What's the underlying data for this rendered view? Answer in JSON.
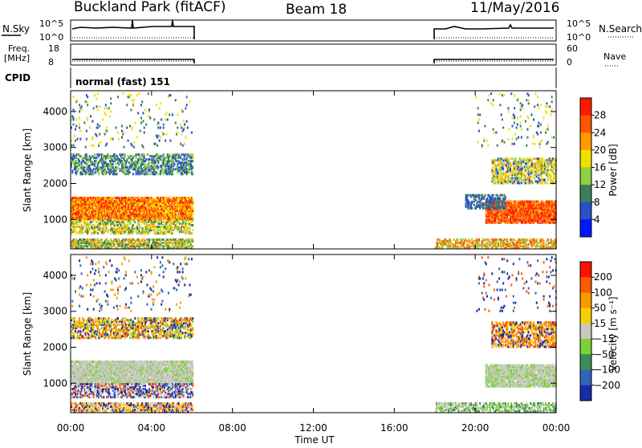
{
  "header": {
    "title": "Buckland Park (fitACF)",
    "beam": "Beam 18",
    "date": "11/May/2016"
  },
  "top_panels": {
    "nsky_label": "N.Sky",
    "nsearch_label": "N.Search",
    "n_left_ticks": [
      "10^5",
      "10^0"
    ],
    "n_right_ticks": [
      "10^5",
      "10^0"
    ],
    "freq_label_1": "Freq.",
    "freq_label_2": "[MHz]",
    "freq_ticks": [
      "18",
      "8"
    ],
    "nave_label": "Nave",
    "nave_ticks": [
      "60",
      "0"
    ],
    "cpid_label": "CPID",
    "cpid_value": "normal (fast) 151"
  },
  "chart_data": [
    {
      "type": "heatmap",
      "name": "power",
      "ylabel": "Slant Range [km]",
      "xlabel": "",
      "x_ticks": [
        "00:00",
        "04:00",
        "08:00",
        "12:00",
        "16:00",
        "20:00",
        "00:00"
      ],
      "xlim_hours": [
        0,
        24
      ],
      "y_ticks": [
        "1000",
        "2000",
        "3000",
        "4000"
      ],
      "ylim": [
        180,
        4580
      ],
      "colorbar_label": "Power [dB]",
      "colorbar_ticks": [
        "4",
        "8",
        "12",
        "16",
        "20",
        "24",
        "28"
      ],
      "colorbar_colors": [
        "#0018ff",
        "#2850c8",
        "#3a7f5a",
        "#8fd040",
        "#f0e000",
        "#ff9a00",
        "#ff5500",
        "#ff1800"
      ],
      "data_gaps_hours": [
        [
          6,
          18
        ]
      ]
    },
    {
      "type": "heatmap",
      "name": "velocity",
      "ylabel": "Slant Range [km]",
      "xlabel": "Time UT",
      "x_ticks": [
        "00:00",
        "04:00",
        "08:00",
        "12:00",
        "16:00",
        "20:00",
        "00:00"
      ],
      "xlim_hours": [
        0,
        24
      ],
      "y_ticks": [
        "1000",
        "2000",
        "3000",
        "4000"
      ],
      "ylim": [
        180,
        4580
      ],
      "colorbar_label": "Velocity [m s⁻¹]",
      "colorbar_ticks": [
        "200",
        "100",
        "50",
        "15",
        "−15",
        "−50",
        "−100",
        "−200"
      ],
      "colorbar_colors": [
        "#1a2aa8",
        "#2f66b8",
        "#3d8a5a",
        "#7cd03a",
        "#c8c8c0",
        "#f8d000",
        "#f89a00",
        "#ff5a00",
        "#ff1000"
      ],
      "data_gaps_hours": [
        [
          6,
          18
        ]
      ]
    }
  ]
}
